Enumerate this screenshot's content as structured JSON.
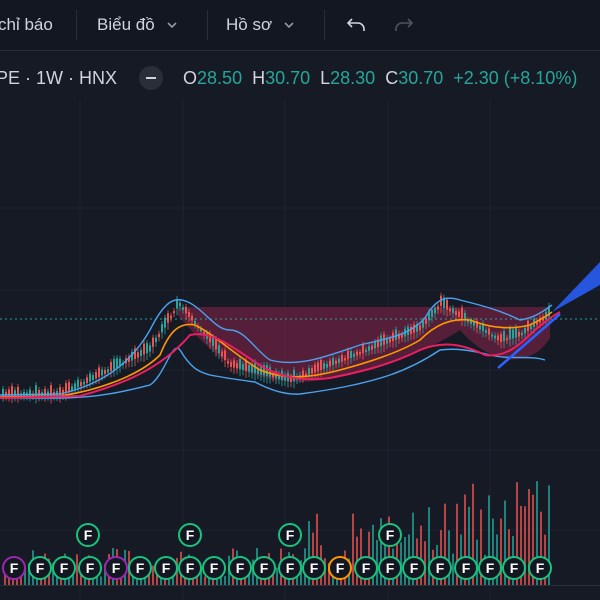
{
  "toolbar": {
    "indicators_label": "chỉ báo",
    "chart_type_label": "Biểu đồ",
    "profile_label": "Hồ sơ"
  },
  "legend": {
    "symbol": "PE · 1W · HNX",
    "open_key": "O",
    "open": "28.50",
    "high_key": "H",
    "high": "30.70",
    "low_key": "L",
    "low": "28.30",
    "close_key": "C",
    "close": "30.70",
    "change": "+2.30 (+8.10%)"
  },
  "colors": {
    "background": "#161a25",
    "up": "#26a69a",
    "down": "#ef5350",
    "bollinger": "#4aa3f0",
    "ma_fast": "#ff9800",
    "ma_slow": "#e91e63",
    "pattern_fill": "#6b2140",
    "trend_line": "#2962ff",
    "dividend_badge": "#19c37d"
  },
  "icons": {
    "undo": "undo-arrow-icon",
    "redo": "redo-arrow-icon",
    "dropdown": "chevron-down-icon",
    "collapse": "minus-icon"
  },
  "badges": {
    "label": "F",
    "row_count": 2
  }
}
